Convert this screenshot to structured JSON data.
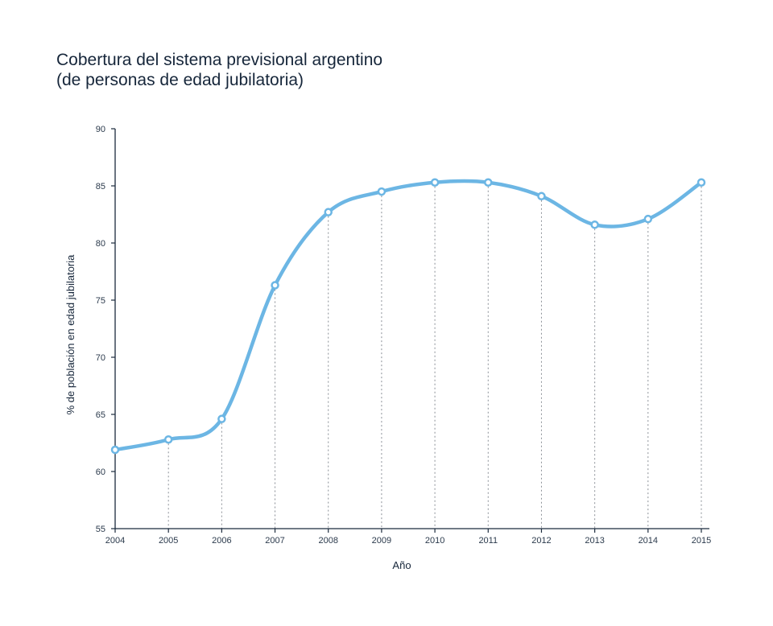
{
  "title_line1": "Cobertura del sistema previsional argentino",
  "title_line2": "(de personas de edad jubilatoria)",
  "chart_data": {
    "type": "line",
    "xlabel": "Año",
    "ylabel": "% de población en edad jubilatoria",
    "categories": [
      "2004",
      "2005",
      "2006",
      "2007",
      "2008",
      "2009",
      "2010",
      "2011",
      "2012",
      "2013",
      "2014",
      "2015"
    ],
    "values": [
      61.9,
      62.8,
      64.6,
      76.3,
      82.7,
      84.5,
      85.3,
      85.3,
      84.1,
      81.6,
      82.1,
      85.3
    ],
    "ylim": [
      55,
      90
    ],
    "yticks": [
      55,
      60,
      65,
      70,
      75,
      80,
      85,
      90
    ],
    "grid": "vertical dotted lines per year",
    "line_color": "#6cb6e4",
    "axis_color": "#1b2a3d"
  }
}
